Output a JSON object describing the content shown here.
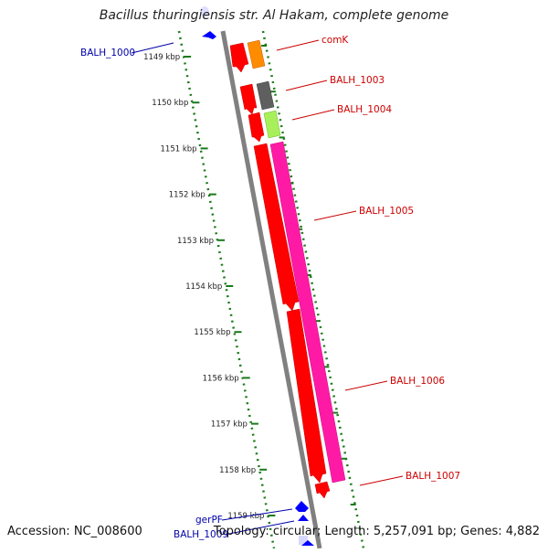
{
  "title": "Bacillus thuringiensis str. Al Hakam, complete genome",
  "footer": {
    "accession": "Accession: NC_008600",
    "summary": "Topology: circular; Length: 5,257,091 bp; Genes: 4,882"
  },
  "colors": {
    "backbone": "#808080",
    "scale": "#1a7a1a",
    "red_gene": "#ff0000",
    "pink_gene": "#ff1aa6",
    "label_red": "#cc0000",
    "label_blue": "#0000aa",
    "blue_marker": "#0000ff"
  },
  "scale_ticks": [
    "1149 kbp",
    "1150 kbp",
    "1151 kbp",
    "1152 kbp",
    "1153 kbp",
    "1154 kbp",
    "1155 kbp",
    "1156 kbp",
    "1157 kbp",
    "1158 kbp",
    "1159 kbp"
  ],
  "gene_labels_right": [
    "comK",
    "BALH_1003",
    "BALH_1004",
    "BALH_1005",
    "BALH_1006",
    "BALH_1007"
  ],
  "gene_labels_left": [
    "BALH_1000",
    "gerPF",
    "BALH_1009"
  ]
}
